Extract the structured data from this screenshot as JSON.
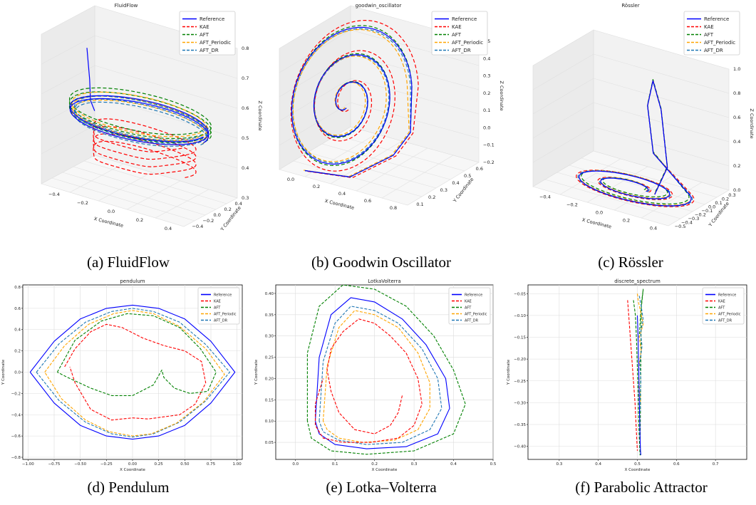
{
  "legend_entries": [
    "Reference",
    "KAE",
    "AFT",
    "AFT_Periodic",
    "AFT_DR"
  ],
  "colors": {
    "Reference": "#0000ff",
    "KAE": "#ff0000",
    "AFT": "#008000",
    "AFT_Periodic": "#ffa500",
    "AFT_DR": "#1f77b4"
  },
  "chart_data": [
    {
      "type": "line3d",
      "title": "FluidFlow",
      "caption": "(a) FluidFlow",
      "xlabel": "X Coordinate",
      "ylabel": "Y Coordinate",
      "zlabel": "Z Coordinate",
      "xticks": [
        "−0.4",
        "−0.2",
        "0.0",
        "0.2",
        "0.4"
      ],
      "yticks": [
        "−0.4",
        "−0.2",
        "0.0",
        "0.2",
        "0.4"
      ],
      "zticks": [
        "0.3",
        "0.4",
        "0.5",
        "0.6",
        "0.7",
        "0.8"
      ],
      "legend_position": "top-right",
      "shape": "limit-cycle"
    },
    {
      "type": "line3d",
      "title": "goodwin_oscillator",
      "caption": "(b) Goodwin Oscillator",
      "xlabel": "X Coordinate",
      "ylabel": "Y Coordinate",
      "zlabel": "Z Coordinate",
      "xticks": [
        "0.0",
        "0.2",
        "0.4",
        "0.6",
        "0.8"
      ],
      "yticks": [
        "0.1",
        "0.2",
        "0.3",
        "0.4",
        "0.5",
        "0.6"
      ],
      "zticks": [
        "−0.2",
        "−0.1",
        "0.0",
        "0.1",
        "0.2",
        "0.3",
        "0.4",
        "0.5"
      ],
      "legend_position": "top-right",
      "shape": "spiral"
    },
    {
      "type": "line3d",
      "title": "Rössler",
      "caption": "(c) Rössler",
      "xlabel": "X Coordinate",
      "ylabel": "Y Coordinate",
      "zlabel": "Z Coordinate",
      "xticks": [
        "−0.4",
        "−0.2",
        "0.0",
        "0.2",
        "0.4"
      ],
      "yticks": [
        "−0.5",
        "−0.4",
        "−0.3",
        "−0.2",
        "−0.1",
        "0.0",
        "0.1",
        "0.2",
        "0.3"
      ],
      "zticks": [
        "0.0",
        "0.2",
        "0.4",
        "0.6",
        "0.8",
        "1.0"
      ],
      "legend_position": "top-right",
      "shape": "rossler"
    },
    {
      "type": "line",
      "title": "pendulum",
      "caption": "(d) Pendulum",
      "xlabel": "X Coordinate",
      "ylabel": "Y Coordinate",
      "xlim": [
        -1.05,
        1.05
      ],
      "ylim": [
        -0.82,
        0.82
      ],
      "xticks": [
        -1.0,
        -0.75,
        -0.5,
        -0.25,
        0.0,
        0.25,
        0.5,
        0.75,
        1.0
      ],
      "xtick_labels": [
        "−1.00",
        "−0.75",
        "−0.50",
        "−0.25",
        "0.00",
        "0.25",
        "0.50",
        "0.75",
        "1.00"
      ],
      "yticks": [
        -0.8,
        -0.6,
        -0.4,
        -0.2,
        0.0,
        0.2,
        0.4,
        0.6,
        0.8
      ],
      "ytick_labels": [
        "−0.8",
        "−0.6",
        "−0.4",
        "−0.2",
        "0.0",
        "0.2",
        "0.4",
        "0.6",
        "0.8"
      ],
      "grid": true,
      "legend_position": "top-right",
      "series": [
        {
          "name": "Reference",
          "x": [
            -0.98,
            -0.75,
            -0.5,
            -0.25,
            0.0,
            0.25,
            0.5,
            0.75,
            0.98,
            0.75,
            0.5,
            0.25,
            0.0,
            -0.25,
            -0.5,
            -0.75,
            -0.98
          ],
          "y": [
            0.0,
            0.29,
            0.5,
            0.6,
            0.63,
            0.6,
            0.5,
            0.29,
            0.0,
            -0.29,
            -0.5,
            -0.6,
            -0.63,
            -0.6,
            -0.5,
            -0.29,
            0.0
          ]
        },
        {
          "name": "AFT_DR",
          "x": [
            -0.92,
            -0.7,
            -0.45,
            -0.2,
            0.0,
            0.2,
            0.45,
            0.7,
            0.93,
            0.7,
            0.45,
            0.2,
            0.0,
            -0.2,
            -0.45,
            -0.7,
            -0.92
          ],
          "y": [
            0.0,
            0.27,
            0.47,
            0.57,
            0.6,
            0.57,
            0.47,
            0.26,
            0.0,
            -0.27,
            -0.47,
            -0.58,
            -0.61,
            -0.58,
            -0.47,
            -0.27,
            0.0
          ]
        },
        {
          "name": "AFT_Periodic",
          "x": [
            -0.84,
            -0.65,
            -0.42,
            -0.18,
            0.0,
            0.2,
            0.45,
            0.7,
            0.88,
            0.68,
            0.42,
            0.18,
            0.0,
            -0.22,
            -0.45,
            -0.68,
            -0.84
          ],
          "y": [
            0.0,
            0.25,
            0.45,
            0.55,
            0.58,
            0.55,
            0.43,
            0.22,
            -0.02,
            -0.28,
            -0.48,
            -0.58,
            -0.6,
            -0.56,
            -0.45,
            -0.25,
            0.0
          ]
        },
        {
          "name": "KAE",
          "x": [
            -0.65,
            -0.55,
            -0.4,
            -0.25,
            -0.1,
            0.1,
            0.3,
            0.5,
            0.66,
            0.7,
            0.6,
            0.45,
            0.3,
            0.15,
            0.0,
            -0.2,
            -0.4,
            -0.55,
            -0.6
          ],
          "y": [
            0.05,
            0.22,
            0.38,
            0.45,
            0.42,
            0.32,
            0.25,
            0.2,
            0.1,
            -0.1,
            -0.3,
            -0.4,
            -0.42,
            -0.44,
            -0.43,
            -0.45,
            -0.35,
            -0.1,
            0.05
          ]
        },
        {
          "name": "AFT",
          "x": [
            -0.72,
            -0.55,
            -0.3,
            -0.05,
            0.2,
            0.45,
            0.65,
            0.8,
            0.72,
            0.55,
            0.4,
            0.3,
            0.28,
            0.2,
            0.0,
            -0.2,
            -0.4,
            -0.62,
            -0.72
          ],
          "y": [
            0.0,
            0.3,
            0.48,
            0.55,
            0.53,
            0.42,
            0.22,
            0.0,
            -0.18,
            -0.2,
            -0.15,
            -0.05,
            0.02,
            -0.12,
            -0.22,
            -0.22,
            -0.15,
            -0.05,
            0.0
          ]
        }
      ]
    },
    {
      "type": "line",
      "title": "LotkaVolterra",
      "caption": "(e) Lotka–Volterra",
      "xlabel": "X Coordinate",
      "ylabel": "Y Coordinate",
      "xlim": [
        -0.05,
        0.5
      ],
      "ylim": [
        0.01,
        0.42
      ],
      "xticks": [
        0.0,
        0.1,
        0.2,
        0.3,
        0.4,
        0.5
      ],
      "xtick_labels": [
        "0.0",
        "0.1",
        "0.2",
        "0.3",
        "0.4",
        "0.5"
      ],
      "yticks": [
        0.05,
        0.1,
        0.15,
        0.2,
        0.25,
        0.3,
        0.35,
        0.4
      ],
      "ytick_labels": [
        "0.05",
        "0.10",
        "0.15",
        "0.20",
        "0.25",
        "0.30",
        "0.35",
        "0.40"
      ],
      "grid": true,
      "legend_position": "top-right",
      "series": [
        {
          "name": "Reference",
          "x": [
            0.05,
            0.06,
            0.09,
            0.14,
            0.2,
            0.27,
            0.33,
            0.38,
            0.39,
            0.36,
            0.28,
            0.18,
            0.1,
            0.06,
            0.05
          ],
          "y": [
            0.1,
            0.25,
            0.35,
            0.39,
            0.38,
            0.34,
            0.28,
            0.2,
            0.13,
            0.07,
            0.04,
            0.035,
            0.045,
            0.07,
            0.1
          ]
        },
        {
          "name": "AFT_DR",
          "x": [
            0.06,
            0.07,
            0.1,
            0.14,
            0.2,
            0.26,
            0.32,
            0.36,
            0.37,
            0.34,
            0.27,
            0.18,
            0.11,
            0.07,
            0.06
          ],
          "y": [
            0.1,
            0.24,
            0.33,
            0.37,
            0.36,
            0.33,
            0.27,
            0.2,
            0.13,
            0.08,
            0.05,
            0.045,
            0.055,
            0.075,
            0.1
          ]
        },
        {
          "name": "AFT_Periodic",
          "x": [
            0.07,
            0.08,
            0.11,
            0.15,
            0.2,
            0.26,
            0.31,
            0.34,
            0.34,
            0.31,
            0.25,
            0.17,
            0.11,
            0.08,
            0.07
          ],
          "y": [
            0.1,
            0.23,
            0.32,
            0.36,
            0.35,
            0.32,
            0.26,
            0.19,
            0.13,
            0.08,
            0.055,
            0.05,
            0.06,
            0.08,
            0.1
          ]
        },
        {
          "name": "AFT",
          "x": [
            0.03,
            0.03,
            0.06,
            0.12,
            0.2,
            0.28,
            0.35,
            0.4,
            0.43,
            0.4,
            0.3,
            0.18,
            0.09,
            0.04,
            0.03
          ],
          "y": [
            0.1,
            0.26,
            0.37,
            0.42,
            0.41,
            0.37,
            0.3,
            0.22,
            0.14,
            0.07,
            0.03,
            0.022,
            0.03,
            0.06,
            0.1
          ]
        },
        {
          "name": "KAE",
          "x": [
            0.27,
            0.26,
            0.24,
            0.2,
            0.15,
            0.11,
            0.09,
            0.08,
            0.09,
            0.12,
            0.16,
            0.2,
            0.24,
            0.28,
            0.31,
            0.32,
            0.3,
            0.26,
            0.19,
            0.12,
            0.07,
            0.05,
            0.05,
            0.07
          ],
          "y": [
            0.16,
            0.12,
            0.09,
            0.07,
            0.08,
            0.12,
            0.17,
            0.22,
            0.27,
            0.31,
            0.34,
            0.33,
            0.3,
            0.26,
            0.2,
            0.14,
            0.09,
            0.06,
            0.05,
            0.05,
            0.06,
            0.09,
            0.14,
            0.2
          ]
        }
      ]
    },
    {
      "type": "line",
      "title": "discrete_spectrum",
      "caption": "(f) Parabolic Attractor",
      "xlabel": "X Coordinate",
      "ylabel": "Y Coordinate",
      "xlim": [
        0.22,
        0.78
      ],
      "ylim": [
        -0.43,
        -0.03
      ],
      "xticks": [
        0.3,
        0.4,
        0.5,
        0.6,
        0.7
      ],
      "xtick_labels": [
        "0.3",
        "0.4",
        "0.5",
        "0.6",
        "0.7"
      ],
      "yticks": [
        -0.4,
        -0.35,
        -0.3,
        -0.25,
        -0.2,
        -0.15,
        -0.1,
        -0.05
      ],
      "ytick_labels": [
        "−0.40",
        "−0.35",
        "−0.30",
        "−0.25",
        "−0.20",
        "−0.15",
        "−0.10",
        "−0.05"
      ],
      "grid": true,
      "legend_position": "top-right",
      "series": [
        {
          "name": "KAE",
          "x": [
            0.475,
            0.478,
            0.482,
            0.486,
            0.49,
            0.494,
            0.497,
            0.5
          ],
          "y": [
            -0.065,
            -0.1,
            -0.15,
            -0.2,
            -0.25,
            -0.3,
            -0.36,
            -0.41
          ]
        },
        {
          "name": "AFT",
          "x": [
            0.49,
            0.495,
            0.498,
            0.5,
            0.502,
            0.503,
            0.505,
            0.507,
            0.51,
            0.515,
            0.508,
            0.505
          ],
          "y": [
            -0.065,
            -0.1,
            -0.16,
            -0.22,
            -0.28,
            -0.33,
            -0.38,
            -0.42,
            -0.075,
            -0.04,
            -0.1,
            -0.15
          ]
        },
        {
          "name": "AFT_Periodic",
          "x": [
            0.5,
            0.503,
            0.508,
            0.515,
            0.505,
            0.51,
            0.503,
            0.505,
            0.508
          ],
          "y": [
            -0.05,
            -0.07,
            -0.09,
            -0.12,
            -0.15,
            -0.18,
            -0.22,
            -0.26,
            -0.3
          ]
        },
        {
          "name": "AFT_DR",
          "x": [
            0.505,
            0.51,
            0.515,
            0.508,
            0.512,
            0.506,
            0.509,
            0.507,
            0.508
          ],
          "y": [
            -0.055,
            -0.08,
            -0.11,
            -0.14,
            -0.17,
            -0.21,
            -0.25,
            -0.29,
            -0.32
          ]
        },
        {
          "name": "Reference",
          "x": [
            0.5,
            0.502,
            0.503,
            0.504,
            0.505,
            0.506,
            0.507,
            0.508,
            0.509
          ],
          "y": [
            -0.1,
            -0.15,
            -0.2,
            -0.25,
            -0.3,
            -0.34,
            -0.38,
            -0.41,
            -0.42
          ]
        }
      ]
    }
  ]
}
